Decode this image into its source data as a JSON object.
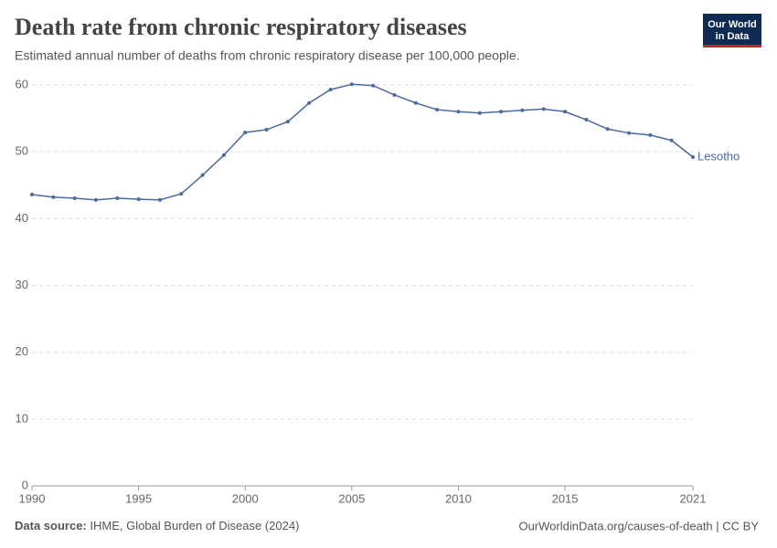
{
  "chart_data": {
    "type": "line",
    "title": "Death rate from chronic respiratory diseases",
    "subtitle": "Estimated annual number of deaths from chronic respiratory disease per 100,000 people.",
    "x": [
      1990,
      1991,
      1992,
      1993,
      1994,
      1995,
      1996,
      1997,
      1998,
      1999,
      2000,
      2001,
      2002,
      2003,
      2004,
      2005,
      2006,
      2007,
      2008,
      2009,
      2010,
      2011,
      2012,
      2013,
      2014,
      2015,
      2016,
      2017,
      2018,
      2019,
      2020,
      2021
    ],
    "series": [
      {
        "name": "Lesotho",
        "color": "#4c6a9c",
        "values": [
          43.6,
          43.2,
          43.05,
          42.8,
          43.05,
          42.9,
          42.8,
          43.7,
          46.5,
          49.5,
          52.9,
          53.3,
          54.5,
          57.3,
          59.3,
          60.1,
          59.9,
          58.5,
          57.3,
          56.3,
          56.0,
          55.8,
          56.0,
          56.2,
          56.4,
          56.0,
          54.8,
          53.4,
          52.8,
          52.5,
          51.7,
          49.2
        ]
      }
    ],
    "xlim": [
      1990,
      2021
    ],
    "xticks": [
      1990,
      1995,
      2000,
      2005,
      2010,
      2015,
      2021
    ],
    "ylim": [
      0,
      60
    ],
    "yticks": [
      0,
      10,
      20,
      30,
      40,
      50,
      60
    ],
    "grid": true
  },
  "logo": [
    "Our World",
    "in Data"
  ],
  "footer": {
    "source_label": "Data source:",
    "source": "IHME, Global Burden of Disease (2024)",
    "link": "OurWorldinData.org/causes-of-death | CC BY"
  }
}
